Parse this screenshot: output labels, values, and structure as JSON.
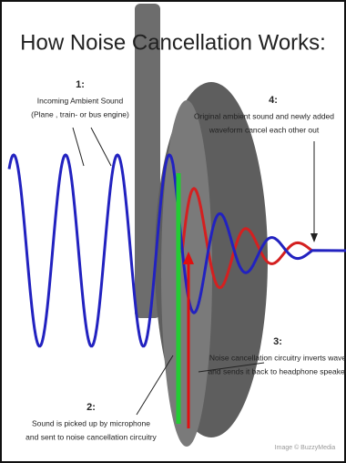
{
  "title": "How Noise Cancellation Works:",
  "steps": [
    {
      "number": "1:",
      "lines": [
        "Incoming Ambient Sound",
        "(Plane , train- or bus engine)"
      ]
    },
    {
      "number": "2:",
      "lines": [
        "Sound is picked up by microphone",
        "and sent to noise cancellation circuitry"
      ]
    },
    {
      "number": "3:",
      "lines": [
        "Noise cancellation circuitry inverts wave",
        "and sends it back to headphone speaker"
      ]
    },
    {
      "number": "4:",
      "lines": [
        "Original ambient sound and newly added",
        "waveform cancel each other out"
      ]
    }
  ],
  "credit": "Image © BuzzyMedia"
}
